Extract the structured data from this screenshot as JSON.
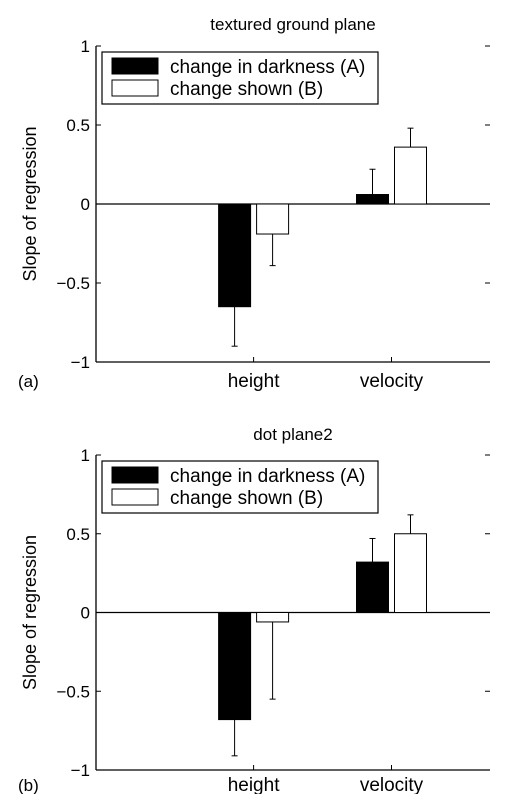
{
  "chart_data": [
    {
      "panel": "(a)",
      "type": "bar",
      "title": "textured ground plane",
      "ylabel": "Slope of regression",
      "xlabel": "",
      "categories": [
        "height",
        "velocity"
      ],
      "ylim": [
        -1,
        1
      ],
      "yticks": [
        "1",
        "0.5",
        "0",
        "−0.5",
        "−1"
      ],
      "ytick_values": [
        1,
        0.5,
        0,
        -0.5,
        -1
      ],
      "grid": false,
      "legend_position": "top-left",
      "series": [
        {
          "name": "change in darkness (A)",
          "color": "#000000",
          "values": [
            -0.65,
            0.06
          ],
          "errors": [
            0.25,
            0.16
          ]
        },
        {
          "name": "change shown (B)",
          "color": "#ffffff",
          "values": [
            -0.19,
            0.36
          ],
          "errors": [
            0.2,
            0.12
          ]
        }
      ]
    },
    {
      "panel": "(b)",
      "type": "bar",
      "title": "dot plane2",
      "ylabel": "Slope of regression",
      "xlabel": "",
      "categories": [
        "height",
        "velocity"
      ],
      "ylim": [
        -1,
        1
      ],
      "yticks": [
        "1",
        "0.5",
        "0",
        "−0.5",
        "−1"
      ],
      "ytick_values": [
        1,
        0.5,
        0,
        -0.5,
        -1
      ],
      "grid": false,
      "legend_position": "top-left",
      "series": [
        {
          "name": "change in darkness (A)",
          "color": "#000000",
          "values": [
            -0.68,
            0.32
          ],
          "errors": [
            0.23,
            0.15
          ]
        },
        {
          "name": "change shown (B)",
          "color": "#ffffff",
          "values": [
            -0.06,
            0.5
          ],
          "errors": [
            0.49,
            0.12
          ]
        }
      ]
    }
  ]
}
